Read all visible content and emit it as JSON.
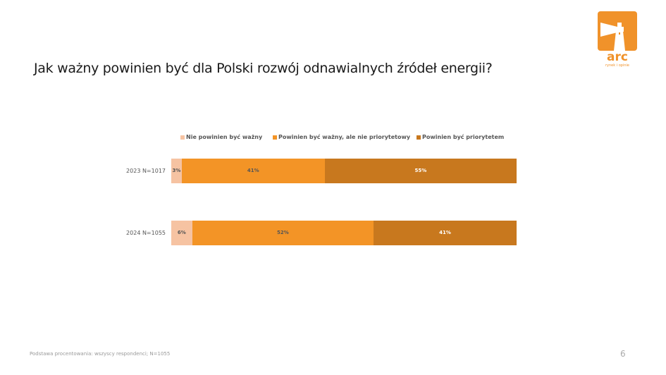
{
  "title": "Jak ważny powinien być dla Polski rozwój odnawialnych źródeł energii?",
  "logo": {
    "text": "arc",
    "subtitle": "rynek i opinie",
    "color": "#F0922A"
  },
  "footnote": "Podstawa procentowania: wszyscy respondenci; N=1055",
  "page_number": "6",
  "chart_data": {
    "type": "bar",
    "orientation": "horizontal",
    "stacked": true,
    "title": "Jak ważny powinien być dla Polski rozwój odnawialnych źródeł energii?",
    "categories": [
      "2023 N=1017",
      "2024 N=1055"
    ],
    "legend_position": "top",
    "grid": false,
    "xlim": [
      0,
      100
    ],
    "series": [
      {
        "name": "Nie powinien być ważny",
        "color": "#F6C3A2",
        "label_color": "#555555",
        "values": [
          3,
          6
        ],
        "labels": [
          "3%",
          "6%"
        ]
      },
      {
        "name": "Powinien być ważny, ale nie priorytetowy",
        "color": "#F39426",
        "label_color": "#555555",
        "values": [
          41,
          52
        ],
        "labels": [
          "41%",
          "52%"
        ]
      },
      {
        "name": "Powinien być priorytetem",
        "color": "#C8781E",
        "label_color": "#ffffff",
        "values": [
          55,
          41
        ],
        "labels": [
          "55%",
          "41%"
        ]
      }
    ]
  }
}
